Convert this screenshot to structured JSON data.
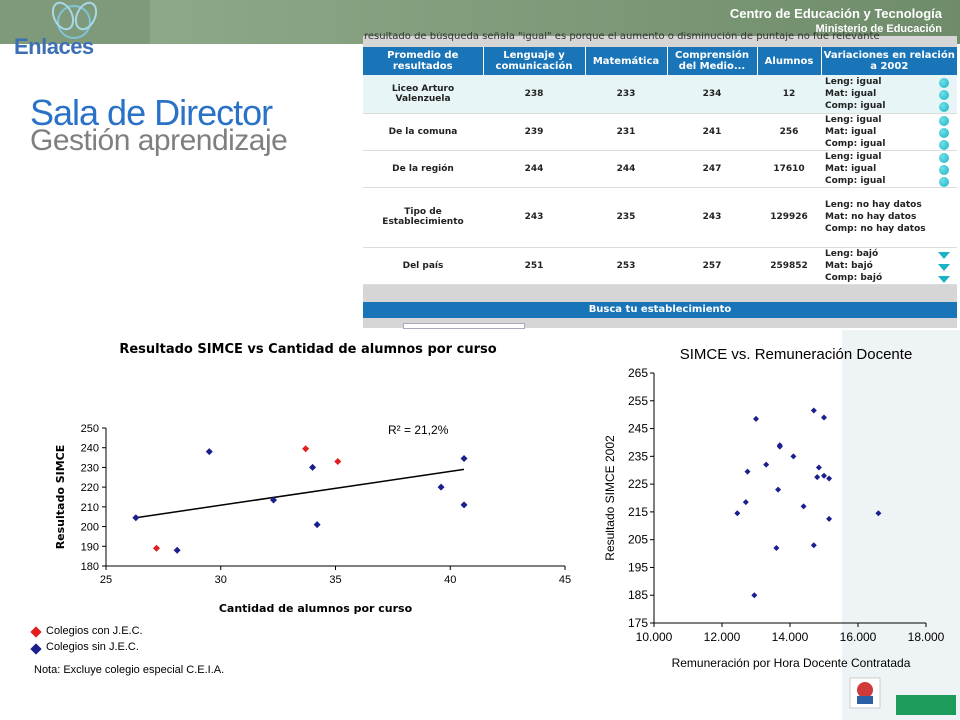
{
  "header": {
    "center_title": "Centro de Educación y Tecnología",
    "ministry": "Ministerio de Educación",
    "logo_text": "Enlaces"
  },
  "page": {
    "title": "Sala de Director",
    "subtitle": "Gestión aprendizaje"
  },
  "results_table": {
    "truncated_text": "resultado de búsqueda señala \"igual\" es porque el aumento o disminución de puntaje no fue relevante",
    "headers": [
      "Promedio de resultados",
      "Lenguaje y comunicación",
      "Matemática",
      "Comprensión del Medio...",
      "Alumnos",
      "Variaciones en relación a 2002"
    ],
    "rows": [
      {
        "name": "Liceo Arturo Valenzuela",
        "leng": "238",
        "mat": "233",
        "comp": "234",
        "alumnos": "12",
        "variations": [
          "Leng: igual",
          "Mat: igual",
          "Comp: igual"
        ],
        "icon": "dot",
        "highlight": true
      },
      {
        "name": "De la comuna",
        "leng": "239",
        "mat": "231",
        "comp": "241",
        "alumnos": "256",
        "variations": [
          "Leng: igual",
          "Mat: igual",
          "Comp: igual"
        ],
        "icon": "dot",
        "highlight": false
      },
      {
        "name": "De la región",
        "leng": "244",
        "mat": "244",
        "comp": "247",
        "alumnos": "17610",
        "variations": [
          "Leng: igual",
          "Mat: igual",
          "Comp: igual"
        ],
        "icon": "dot",
        "highlight": false
      },
      {
        "name": "Tipo de Establecimiento",
        "leng": "243",
        "mat": "235",
        "comp": "243",
        "alumnos": "129926",
        "variations": [
          "Leng: no hay datos",
          "Mat: no hay datos",
          "Comp: no hay datos"
        ],
        "icon": "none",
        "highlight": false
      },
      {
        "name": "Del país",
        "leng": "251",
        "mat": "253",
        "comp": "257",
        "alumnos": "259852",
        "variations": [
          "Leng: bajó",
          "Mat: bajó",
          "Comp: bajó"
        ],
        "icon": "triangle-down",
        "highlight": false
      }
    ],
    "search_label": "Busca tu establecimiento"
  },
  "chart_data": [
    {
      "type": "scatter",
      "title": "Resultado SIMCE vs Cantidad de alumnos por curso",
      "xlabel": "Cantidad de alumnos por curso",
      "ylabel": "Resultado SIMCE",
      "xlim": [
        25,
        45
      ],
      "ylim": [
        180,
        250
      ],
      "xticks": [
        "25",
        "30",
        "35",
        "40",
        "45"
      ],
      "yticks": [
        "180",
        "190",
        "200",
        "210",
        "220",
        "230",
        "240",
        "250"
      ],
      "annotation": "R² = 21,2%",
      "trendline": {
        "from": [
          26.3,
          204.5
        ],
        "to": [
          40.6,
          229
        ]
      },
      "series": [
        {
          "name": "Colegios con J.E.C.",
          "color": "#e02020",
          "points": [
            [
              27.2,
              189
            ],
            [
              33.7,
              239.5
            ],
            [
              35.1,
              233
            ]
          ]
        },
        {
          "name": "Colegios sin J.E.C.",
          "color": "#1a1f8c",
          "points": [
            [
              26.3,
              204.5
            ],
            [
              28.1,
              188
            ],
            [
              29.5,
              238
            ],
            [
              32.3,
              213.5
            ],
            [
              34.0,
              230
            ],
            [
              34.2,
              201
            ],
            [
              39.6,
              220
            ],
            [
              40.6,
              234.5
            ],
            [
              40.6,
              211
            ]
          ]
        }
      ],
      "note": "Nota: Excluye colegio especial C.E.I.A."
    },
    {
      "type": "scatter",
      "title": "SIMCE vs. Remuneración Docente",
      "xlabel": "Remuneración por Hora Docente Contratada",
      "ylabel": "Resultado SIMCE 2002",
      "xlim": [
        10000,
        18000
      ],
      "ylim": [
        175,
        265
      ],
      "xticks": [
        "10.000",
        "12.000",
        "14.000",
        "16.000",
        "18.000"
      ],
      "yticks": [
        "175",
        "185",
        "195",
        "205",
        "215",
        "225",
        "235",
        "245",
        "255",
        "265"
      ],
      "series": [
        {
          "name": "",
          "color": "#1a1f8c",
          "points": [
            [
              12450,
              214.5
            ],
            [
              12700,
              218.5
            ],
            [
              12750,
              229.5
            ],
            [
              12950,
              185
            ],
            [
              13000,
              248.5
            ],
            [
              13300,
              232
            ],
            [
              13600,
              202
            ],
            [
              13650,
              223
            ],
            [
              13700,
              239
            ],
            [
              13700,
              238.5
            ],
            [
              14100,
              235
            ],
            [
              14400,
              217
            ],
            [
              14700,
              251.5
            ],
            [
              14700,
              203
            ],
            [
              14800,
              227.5
            ],
            [
              14850,
              231
            ],
            [
              15000,
              249
            ],
            [
              15000,
              228
            ],
            [
              15150,
              227
            ],
            [
              15150,
              212.5
            ],
            [
              16600,
              214.5
            ]
          ]
        }
      ]
    }
  ]
}
